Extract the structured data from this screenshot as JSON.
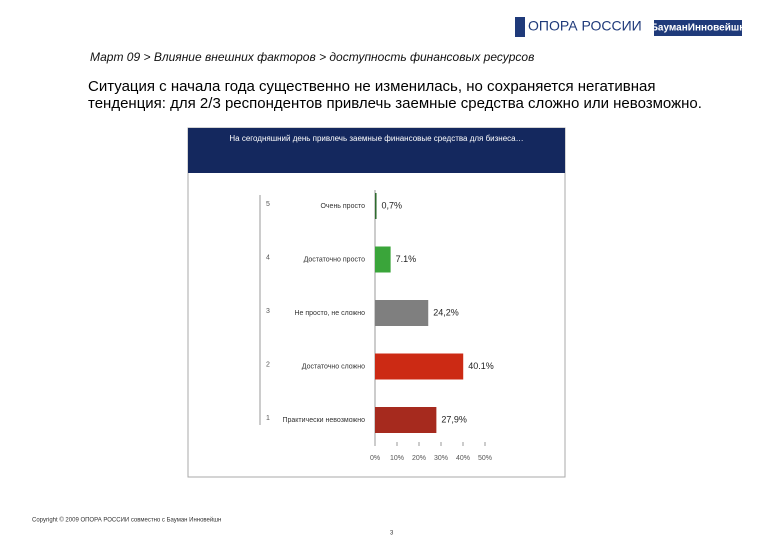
{
  "logo": {
    "name": "ОПОРА РОССИИ",
    "partner": "БауманИнновейшн"
  },
  "breadcrumb": "Март 09 > Влияние внешних факторов > доступность финансовых ресурсов",
  "summary": "Ситуация с начала года существенно не изменилась, но сохраняется негативная тенденция: для 2/3 респондентов привлечь заемные средства сложно или невозможно.",
  "footer": {
    "copyright": "Copyright © 2009 ОПОРА РОССИИ совместно с Бауман Инновейшн",
    "page": "3"
  },
  "chart_data": {
    "type": "hbar",
    "title": "На сегодняшний день привлечь заемные финансовые средства для бизнеса…",
    "codes": [
      "5",
      "4",
      "3",
      "2",
      "1"
    ],
    "categories": [
      "Очень просто",
      "Достаточно просто",
      "Не просто, не сложно",
      "Достаточно сложно",
      "Практически невозможно"
    ],
    "values": [
      0.7,
      7.1,
      24.2,
      40.1,
      27.9
    ],
    "value_labels": [
      "0,7%",
      "7.1%",
      "24,2%",
      "40.1%",
      "27,9%"
    ],
    "colors": [
      "#2e6b2e",
      "#3aa53a",
      "#7f7f7f",
      "#cc2a14",
      "#a62a1e"
    ],
    "xlim": [
      0,
      50
    ],
    "xticks": [
      {
        "value": 0,
        "label": "0%"
      },
      {
        "value": 10,
        "label": "10%"
      },
      {
        "value": 20,
        "label": "20%"
      },
      {
        "value": 30,
        "label": "30%"
      },
      {
        "value": 40,
        "label": "40%"
      },
      {
        "value": 50,
        "label": "50%"
      }
    ]
  }
}
